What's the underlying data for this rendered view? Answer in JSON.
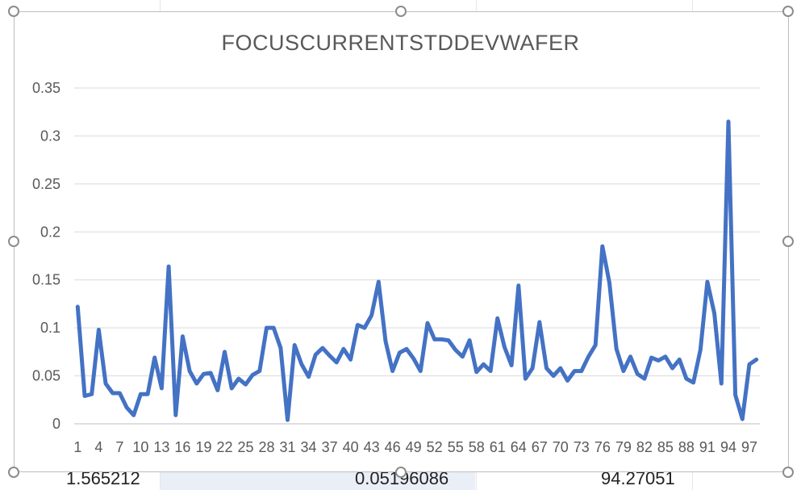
{
  "sheet": {
    "cells": [
      "1.565212",
      "0.05196086",
      "94.27051"
    ]
  },
  "chart_data": {
    "type": "line",
    "title": "FOCUSCURRENTSTDDEVWAFER",
    "xlabel": "",
    "ylabel": "",
    "ylim": [
      0,
      0.35
    ],
    "y_ticks": [
      "0",
      "0.05",
      "0.1",
      "0.15",
      "0.2",
      "0.25",
      "0.3",
      "0.35"
    ],
    "x_ticks": [
      "1",
      "4",
      "7",
      "10",
      "13",
      "16",
      "19",
      "22",
      "25",
      "28",
      "31",
      "34",
      "37",
      "40",
      "43",
      "46",
      "49",
      "52",
      "55",
      "58",
      "61",
      "64",
      "67",
      "70",
      "73",
      "76",
      "79",
      "82",
      "85",
      "88",
      "91",
      "94",
      "97"
    ],
    "grid": true,
    "legend": "none",
    "line_color": "#4472c4",
    "x": [
      1,
      2,
      3,
      4,
      5,
      6,
      7,
      8,
      9,
      10,
      11,
      12,
      13,
      14,
      15,
      16,
      17,
      18,
      19,
      20,
      21,
      22,
      23,
      24,
      25,
      26,
      27,
      28,
      29,
      30,
      31,
      32,
      33,
      34,
      35,
      36,
      37,
      38,
      39,
      40,
      41,
      42,
      43,
      44,
      45,
      46,
      47,
      48,
      49,
      50,
      51,
      52,
      53,
      54,
      55,
      56,
      57,
      58,
      59,
      60,
      61,
      62,
      63,
      64,
      65,
      66,
      67,
      68,
      69,
      70,
      71,
      72,
      73,
      74,
      75,
      76,
      77,
      78,
      79,
      80,
      81,
      82,
      83,
      84,
      85,
      86,
      87,
      88,
      89,
      90,
      91,
      92,
      93,
      94,
      95,
      96,
      97,
      98
    ],
    "values": [
      0.122,
      0.029,
      0.031,
      0.098,
      0.042,
      0.032,
      0.032,
      0.017,
      0.009,
      0.031,
      0.031,
      0.069,
      0.037,
      0.164,
      0.009,
      0.091,
      0.055,
      0.042,
      0.052,
      0.053,
      0.035,
      0.075,
      0.037,
      0.047,
      0.041,
      0.051,
      0.055,
      0.1,
      0.1,
      0.079,
      0.004,
      0.082,
      0.062,
      0.049,
      0.072,
      0.079,
      0.071,
      0.064,
      0.078,
      0.067,
      0.103,
      0.1,
      0.113,
      0.148,
      0.086,
      0.055,
      0.074,
      0.078,
      0.068,
      0.055,
      0.105,
      0.088,
      0.088,
      0.087,
      0.077,
      0.07,
      0.087,
      0.054,
      0.062,
      0.055,
      0.11,
      0.08,
      0.061,
      0.144,
      0.047,
      0.058,
      0.106,
      0.058,
      0.05,
      0.058,
      0.045,
      0.055,
      0.055,
      0.07,
      0.082,
      0.185,
      0.147,
      0.078,
      0.055,
      0.07,
      0.052,
      0.047,
      0.069,
      0.066,
      0.07,
      0.058,
      0.067,
      0.047,
      0.043,
      0.077,
      0.148,
      0.115,
      0.042,
      0.315,
      0.03,
      0.005,
      0.062,
      0.067
    ]
  }
}
